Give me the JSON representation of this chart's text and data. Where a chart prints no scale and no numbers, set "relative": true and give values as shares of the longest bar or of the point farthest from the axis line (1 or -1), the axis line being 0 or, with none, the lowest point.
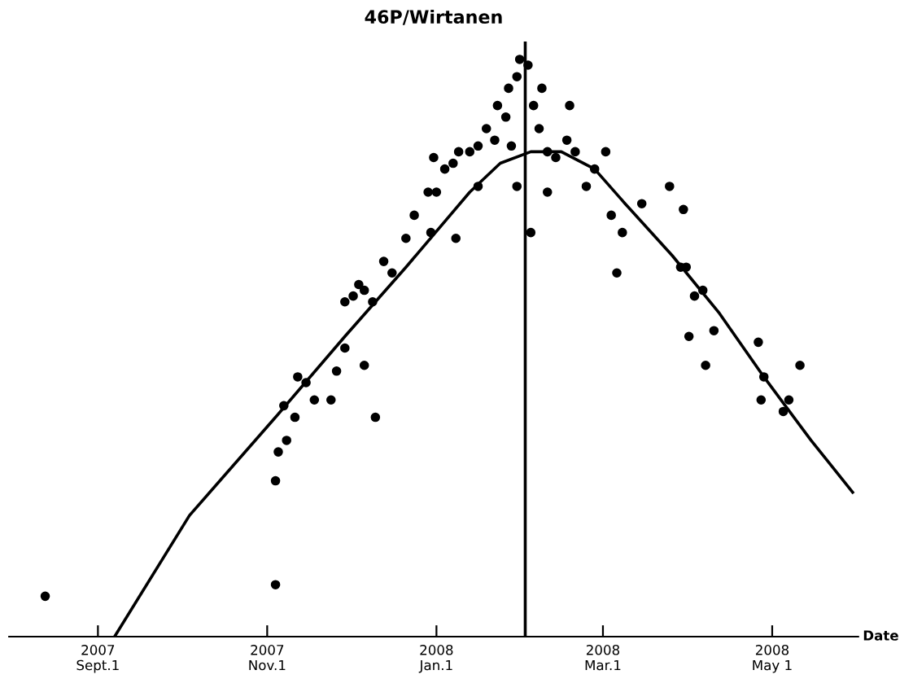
{
  "chart_data": {
    "type": "scatter",
    "title": "46P/Wirtanen",
    "xlabel": "Date",
    "relative": true,
    "marker": "circle",
    "grid": false,
    "legend": false,
    "xlim": [
      "2007-07-31",
      "2008-06-01"
    ],
    "xticks": [
      {
        "value": "2007-09-01",
        "label": "2007\nSept.1"
      },
      {
        "value": "2007-11-01",
        "label": "2007\nNov.1"
      },
      {
        "value": "2008-01-01",
        "label": "2008\nJan.1"
      },
      {
        "value": "2008-03-01",
        "label": "2008\nMar.1"
      },
      {
        "value": "2008-05-01",
        "label": "2008\nMay 1"
      }
    ],
    "ref_lines": [
      {
        "axis": "x",
        "value": "2008-02-02",
        "color": "#000000"
      }
    ],
    "series": [
      {
        "color": "#000000",
        "x": [
          "2007-08-13",
          "2007-11-04",
          "2007-11-04",
          "2007-11-05",
          "2007-11-08",
          "2007-11-11",
          "2007-11-07",
          "2007-11-12",
          "2007-11-15",
          "2007-11-18",
          "2007-11-24",
          "2007-11-26",
          "2007-11-29",
          "2007-11-29",
          "2007-12-02",
          "2007-12-06",
          "2007-12-09",
          "2007-12-10",
          "2007-12-06",
          "2007-12-04",
          "2007-12-13",
          "2007-12-16",
          "2007-12-21",
          "2007-12-24",
          "2007-12-29",
          "2007-12-31",
          "2008-01-01",
          "2008-01-04",
          "2008-01-07",
          "2008-01-09",
          "2008-01-13",
          "2008-01-16",
          "2007-12-30",
          "2008-01-08",
          "2008-01-16",
          "2008-01-19",
          "2008-01-22",
          "2008-01-23",
          "2008-01-26",
          "2008-01-27",
          "2008-01-30",
          "2008-01-31",
          "2008-02-03",
          "2008-02-05",
          "2008-02-07",
          "2008-02-08",
          "2008-02-10",
          "2008-01-28",
          "2008-01-30",
          "2008-02-04",
          "2008-02-10",
          "2008-02-13",
          "2008-02-17",
          "2008-02-18",
          "2008-02-20",
          "2008-02-24",
          "2008-02-27",
          "2008-03-02",
          "2008-03-04",
          "2008-03-06",
          "2008-03-08",
          "2008-03-15",
          "2008-03-25",
          "2008-03-30",
          "2008-03-29",
          "2008-03-31",
          "2008-04-03",
          "2008-04-01",
          "2008-04-06",
          "2008-04-07",
          "2008-04-10",
          "2008-04-26",
          "2008-04-27",
          "2008-04-28",
          "2008-05-05",
          "2008-05-07",
          "2008-05-11"
        ],
        "values": [
          0.07,
          0.09,
          0.27,
          0.32,
          0.34,
          0.38,
          0.4,
          0.45,
          0.44,
          0.41,
          0.41,
          0.46,
          0.5,
          0.58,
          0.59,
          0.6,
          0.58,
          0.38,
          0.47,
          0.61,
          0.65,
          0.63,
          0.69,
          0.73,
          0.77,
          0.83,
          0.77,
          0.81,
          0.82,
          0.84,
          0.84,
          0.85,
          0.7,
          0.69,
          0.78,
          0.88,
          0.86,
          0.92,
          0.9,
          0.95,
          0.97,
          1.0,
          0.99,
          0.92,
          0.88,
          0.95,
          0.84,
          0.85,
          0.78,
          0.7,
          0.77,
          0.83,
          0.86,
          0.92,
          0.84,
          0.78,
          0.81,
          0.84,
          0.73,
          0.63,
          0.7,
          0.75,
          0.78,
          0.74,
          0.64,
          0.64,
          0.59,
          0.52,
          0.6,
          0.47,
          0.53,
          0.51,
          0.41,
          0.45,
          0.39,
          0.41,
          0.47
        ]
      },
      {
        "type": "line",
        "color": "#000000",
        "marker": "none",
        "x": [
          "2007-09-07",
          "2007-10-04",
          "2007-11-04",
          "2007-11-29",
          "2007-12-21",
          "2008-01-13",
          "2008-01-24",
          "2008-02-04",
          "2008-02-15",
          "2008-02-27",
          "2008-03-09",
          "2008-03-26",
          "2008-04-12",
          "2008-04-28",
          "2008-05-15",
          "2008-05-30"
        ],
        "values": [
          0,
          0.21,
          0.38,
          0.52,
          0.64,
          0.77,
          0.82,
          0.84,
          0.84,
          0.81,
          0.75,
          0.66,
          0.56,
          0.45,
          0.34,
          0.25
        ]
      }
    ]
  }
}
